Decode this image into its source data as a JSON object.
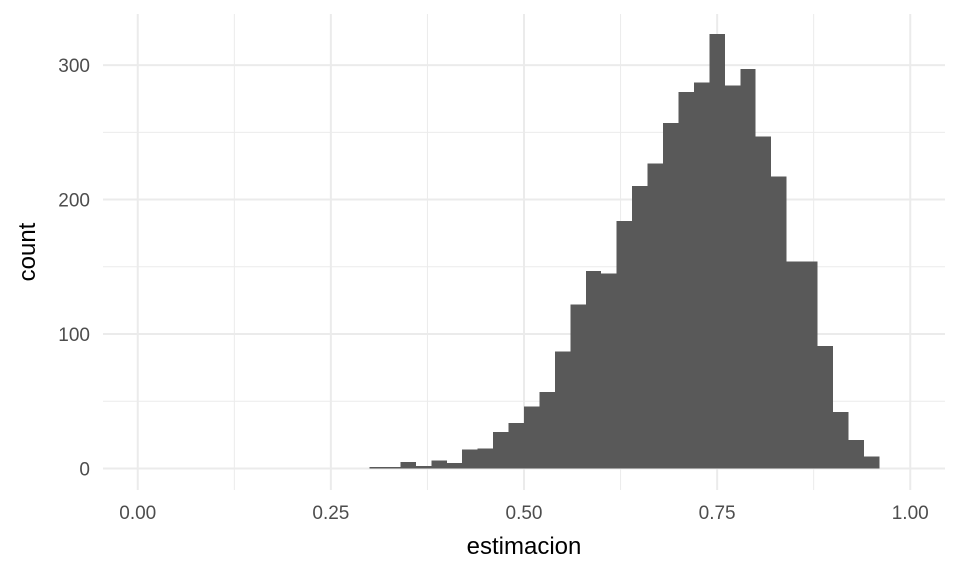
{
  "chart_data": {
    "type": "bar",
    "subtype": "histogram",
    "xlabel": "estimacion",
    "ylabel": "count",
    "xlim": [
      -0.045,
      1.045
    ],
    "ylim": [
      -16,
      338
    ],
    "xticks": [
      0.0,
      0.25,
      0.5,
      0.75,
      1.0
    ],
    "xtick_labels": [
      "0.00",
      "0.25",
      "0.50",
      "0.75",
      "1.00"
    ],
    "yticks": [
      0,
      100,
      200,
      300
    ],
    "ytick_labels": [
      "0",
      "100",
      "200",
      "300"
    ],
    "grid": true,
    "bar_color": "#595959",
    "bin_width": 0.02,
    "bins": [
      {
        "x0": 0.3,
        "x1": 0.32,
        "count": 1
      },
      {
        "x0": 0.32,
        "x1": 0.34,
        "count": 1
      },
      {
        "x0": 0.34,
        "x1": 0.36,
        "count": 5
      },
      {
        "x0": 0.36,
        "x1": 0.38,
        "count": 2
      },
      {
        "x0": 0.38,
        "x1": 0.4,
        "count": 6
      },
      {
        "x0": 0.4,
        "x1": 0.42,
        "count": 4
      },
      {
        "x0": 0.42,
        "x1": 0.44,
        "count": 14
      },
      {
        "x0": 0.44,
        "x1": 0.46,
        "count": 15
      },
      {
        "x0": 0.46,
        "x1": 0.48,
        "count": 27
      },
      {
        "x0": 0.48,
        "x1": 0.5,
        "count": 34
      },
      {
        "x0": 0.5,
        "x1": 0.52,
        "count": 46
      },
      {
        "x0": 0.52,
        "x1": 0.54,
        "count": 57
      },
      {
        "x0": 0.54,
        "x1": 0.56,
        "count": 87
      },
      {
        "x0": 0.56,
        "x1": 0.58,
        "count": 122
      },
      {
        "x0": 0.58,
        "x1": 0.6,
        "count": 147
      },
      {
        "x0": 0.6,
        "x1": 0.62,
        "count": 145
      },
      {
        "x0": 0.62,
        "x1": 0.64,
        "count": 184
      },
      {
        "x0": 0.64,
        "x1": 0.66,
        "count": 210
      },
      {
        "x0": 0.66,
        "x1": 0.68,
        "count": 227
      },
      {
        "x0": 0.68,
        "x1": 0.7,
        "count": 257
      },
      {
        "x0": 0.7,
        "x1": 0.72,
        "count": 280
      },
      {
        "x0": 0.72,
        "x1": 0.74,
        "count": 287
      },
      {
        "x0": 0.74,
        "x1": 0.76,
        "count": 323
      },
      {
        "x0": 0.76,
        "x1": 0.78,
        "count": 285
      },
      {
        "x0": 0.78,
        "x1": 0.8,
        "count": 297
      },
      {
        "x0": 0.8,
        "x1": 0.82,
        "count": 247
      },
      {
        "x0": 0.82,
        "x1": 0.84,
        "count": 217
      },
      {
        "x0": 0.84,
        "x1": 0.86,
        "count": 154
      },
      {
        "x0": 0.86,
        "x1": 0.88,
        "count": 154
      },
      {
        "x0": 0.88,
        "x1": 0.9,
        "count": 91
      },
      {
        "x0": 0.9,
        "x1": 0.92,
        "count": 42
      },
      {
        "x0": 0.92,
        "x1": 0.94,
        "count": 21
      },
      {
        "x0": 0.94,
        "x1": 0.96,
        "count": 9
      }
    ]
  }
}
